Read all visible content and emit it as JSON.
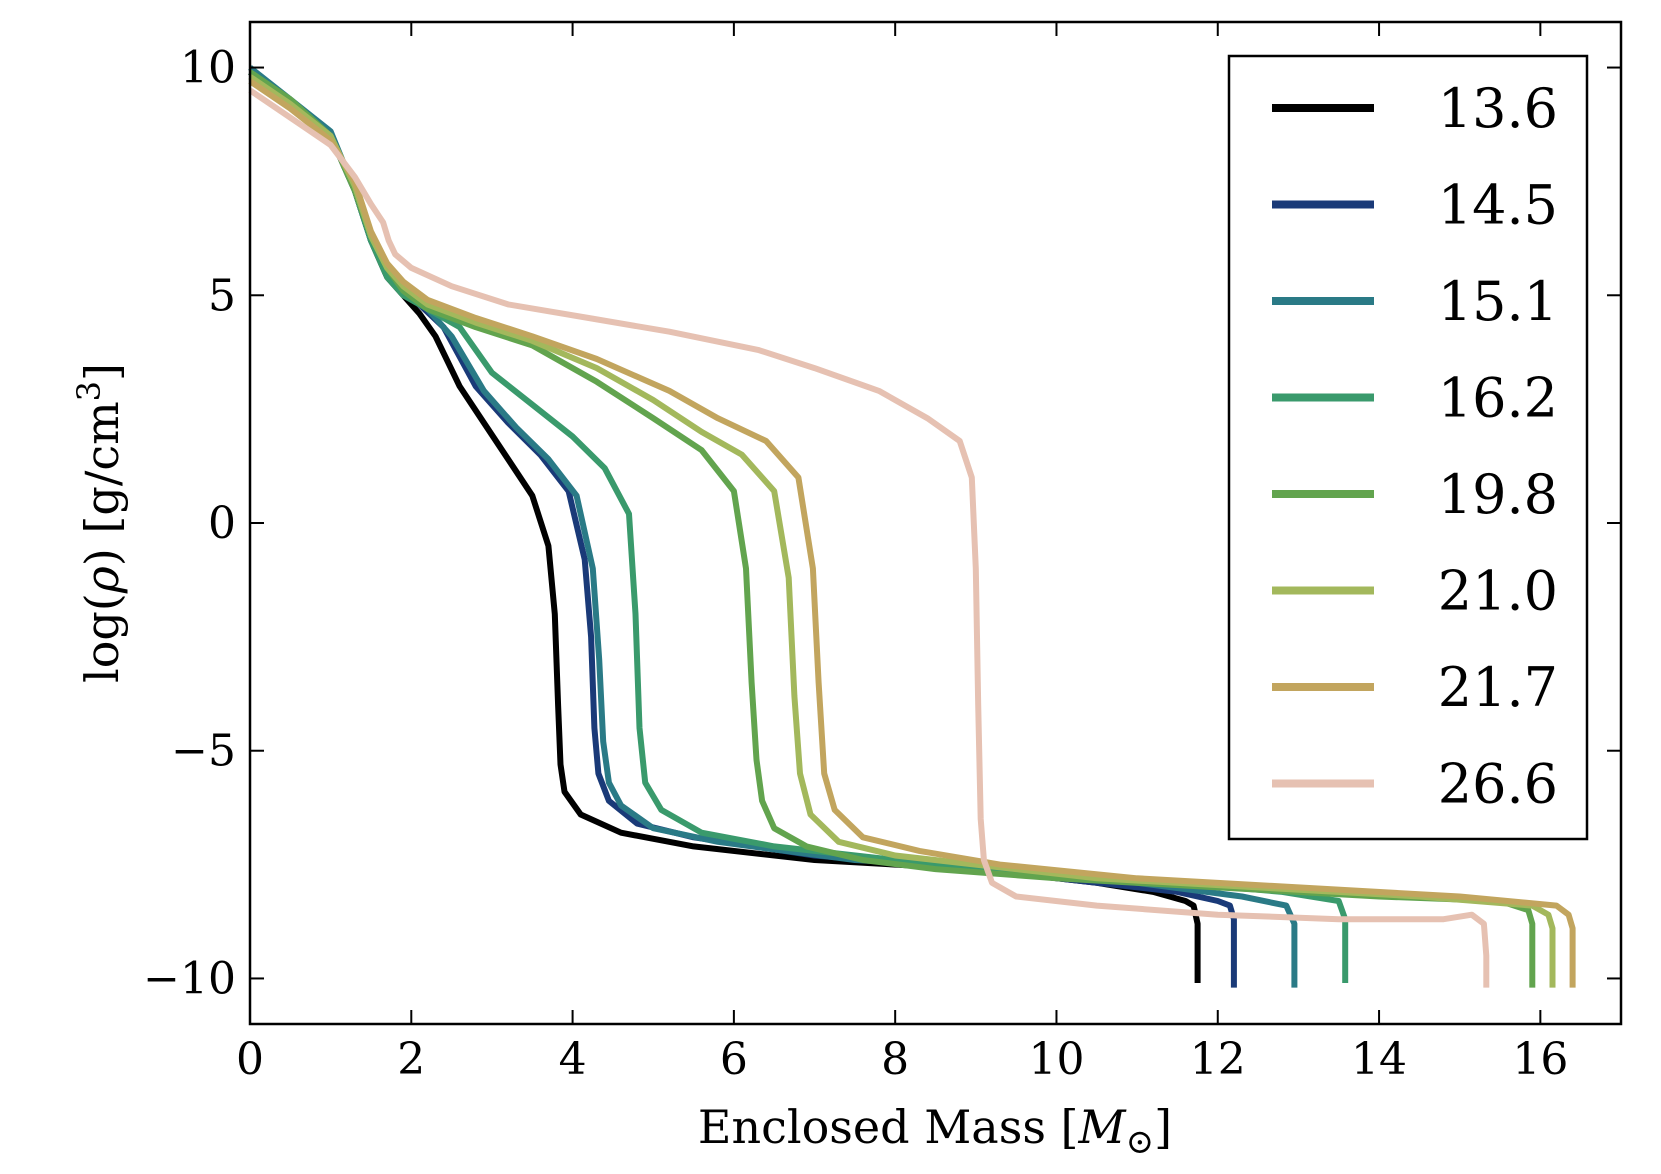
{
  "chart_data": {
    "type": "line",
    "title": "",
    "xlabel": "Enclosed Mass [M⊙]",
    "xlabel_main": "Enclosed Mass [",
    "xlabel_symbol": "M",
    "xlabel_sub": "⊙",
    "xlabel_close": "]",
    "ylabel": "log(ρ) [g/cm³]",
    "ylabel_main": "log(",
    "ylabel_symbol": "ρ",
    "ylabel_mid": ") [g/cm",
    "ylabel_sup": "3",
    "ylabel_close": "]",
    "xlim": [
      0,
      17
    ],
    "ylim": [
      -11,
      11
    ],
    "xticks": [
      0,
      2,
      4,
      6,
      8,
      10,
      12,
      14,
      16
    ],
    "xtick_labels": [
      "0",
      "2",
      "4",
      "6",
      "8",
      "10",
      "12",
      "14",
      "16"
    ],
    "yticks": [
      10,
      5,
      0,
      -5,
      -10
    ],
    "ytick_labels": [
      "10",
      "5",
      "0",
      "−5",
      "−10"
    ],
    "grid": false,
    "legend_position": "top-right",
    "series": [
      {
        "name": "13.6",
        "color": "#000000",
        "x": [
          0,
          0.5,
          1.0,
          1.3,
          1.5,
          1.7,
          1.9,
          2.1,
          2.3,
          2.6,
          2.9,
          3.2,
          3.5,
          3.7,
          3.78,
          3.82,
          3.85,
          3.9,
          4.1,
          4.6,
          5.5,
          7,
          9,
          10.5,
          11.2,
          11.6,
          11.7,
          11.75,
          11.75
        ],
        "y": [
          9.9,
          9.2,
          8.5,
          7.3,
          6.2,
          5.4,
          5.0,
          4.6,
          4.1,
          3.0,
          2.2,
          1.4,
          0.6,
          -0.5,
          -2.0,
          -4.0,
          -5.3,
          -5.9,
          -6.4,
          -6.8,
          -7.1,
          -7.4,
          -7.6,
          -7.9,
          -8.1,
          -8.3,
          -8.4,
          -8.8,
          -10.1
        ]
      },
      {
        "name": "14.5",
        "color": "#1a3a78",
        "x": [
          0,
          0.5,
          1.0,
          1.3,
          1.5,
          1.7,
          1.9,
          2.1,
          2.4,
          2.8,
          3.2,
          3.6,
          3.95,
          4.15,
          4.23,
          4.27,
          4.32,
          4.45,
          4.8,
          5.5,
          7,
          9,
          10.5,
          11.5,
          12.0,
          12.15,
          12.2,
          12.2
        ],
        "y": [
          9.9,
          9.2,
          8.5,
          7.3,
          6.2,
          5.5,
          5.1,
          4.8,
          4.3,
          3.0,
          2.2,
          1.5,
          0.7,
          -0.8,
          -2.5,
          -4.5,
          -5.5,
          -6.1,
          -6.6,
          -6.9,
          -7.3,
          -7.6,
          -7.9,
          -8.1,
          -8.3,
          -8.4,
          -8.7,
          -10.2
        ]
      },
      {
        "name": "15.1",
        "color": "#2a7a86",
        "x": [
          0,
          0.5,
          1.0,
          1.3,
          1.5,
          1.7,
          1.9,
          2.2,
          2.5,
          2.9,
          3.3,
          3.7,
          4.05,
          4.25,
          4.33,
          4.38,
          4.45,
          4.6,
          5.0,
          5.8,
          7.5,
          9.5,
          11,
          12.3,
          12.85,
          12.95,
          12.95
        ],
        "y": [
          10.0,
          9.3,
          8.6,
          7.3,
          6.2,
          5.5,
          5.1,
          4.7,
          4.1,
          2.9,
          2.1,
          1.4,
          0.6,
          -1.0,
          -3.0,
          -4.8,
          -5.7,
          -6.2,
          -6.7,
          -7.0,
          -7.4,
          -7.6,
          -7.9,
          -8.2,
          -8.4,
          -8.8,
          -10.2
        ]
      },
      {
        "name": "16.2",
        "color": "#3a9a6c",
        "x": [
          0,
          0.5,
          1.0,
          1.3,
          1.5,
          1.7,
          1.9,
          2.2,
          2.6,
          3.0,
          3.5,
          4.0,
          4.4,
          4.7,
          4.78,
          4.83,
          4.9,
          5.1,
          5.6,
          6.5,
          8,
          10,
          11.5,
          12.8,
          13.5,
          13.58,
          13.58
        ],
        "y": [
          9.9,
          9.3,
          8.5,
          7.3,
          6.2,
          5.4,
          5.0,
          4.7,
          4.3,
          3.3,
          2.6,
          1.9,
          1.2,
          0.2,
          -2.0,
          -4.5,
          -5.7,
          -6.3,
          -6.8,
          -7.1,
          -7.4,
          -7.7,
          -7.9,
          -8.1,
          -8.3,
          -8.7,
          -10.1
        ]
      },
      {
        "name": "19.8",
        "color": "#62a44e",
        "x": [
          0,
          0.5,
          1.0,
          1.3,
          1.5,
          1.7,
          1.9,
          2.2,
          2.8,
          3.5,
          4.3,
          5.0,
          5.6,
          6.0,
          6.15,
          6.22,
          6.28,
          6.35,
          6.5,
          6.9,
          7.6,
          8.5,
          10,
          12,
          14,
          15.5,
          15.85,
          15.9,
          15.9
        ],
        "y": [
          9.9,
          9.3,
          8.5,
          7.3,
          6.3,
          5.6,
          5.1,
          4.7,
          4.3,
          3.9,
          3.1,
          2.3,
          1.6,
          0.7,
          -1.0,
          -3.5,
          -5.2,
          -6.1,
          -6.7,
          -7.1,
          -7.4,
          -7.6,
          -7.8,
          -8.0,
          -8.2,
          -8.3,
          -8.5,
          -8.8,
          -10.2
        ]
      },
      {
        "name": "21.0",
        "color": "#a3b85c",
        "x": [
          0,
          0.5,
          1.0,
          1.3,
          1.5,
          1.7,
          1.9,
          2.2,
          2.8,
          3.5,
          4.3,
          5.0,
          5.6,
          6.1,
          6.5,
          6.68,
          6.75,
          6.82,
          6.95,
          7.3,
          8.0,
          9.0,
          10.5,
          12.5,
          14.5,
          15.9,
          16.1,
          16.15,
          16.15
        ],
        "y": [
          9.8,
          9.2,
          8.5,
          7.4,
          6.3,
          5.6,
          5.2,
          4.8,
          4.4,
          4.0,
          3.4,
          2.7,
          2.0,
          1.5,
          0.7,
          -1.2,
          -3.8,
          -5.5,
          -6.4,
          -7.0,
          -7.3,
          -7.5,
          -7.8,
          -8.0,
          -8.2,
          -8.4,
          -8.6,
          -8.9,
          -10.2
        ]
      },
      {
        "name": "21.7",
        "color": "#c2a55e",
        "x": [
          0,
          0.5,
          1.0,
          1.3,
          1.5,
          1.7,
          1.9,
          2.2,
          2.8,
          3.5,
          4.3,
          5.2,
          5.8,
          6.4,
          6.8,
          6.98,
          7.05,
          7.12,
          7.25,
          7.6,
          8.3,
          9.3,
          11,
          13,
          15,
          16.2,
          16.35,
          16.4,
          16.4
        ],
        "y": [
          9.7,
          9.1,
          8.4,
          7.5,
          6.4,
          5.7,
          5.3,
          4.9,
          4.5,
          4.1,
          3.6,
          2.9,
          2.3,
          1.8,
          1.0,
          -1.0,
          -3.5,
          -5.5,
          -6.3,
          -6.9,
          -7.2,
          -7.5,
          -7.8,
          -8.0,
          -8.2,
          -8.4,
          -8.6,
          -8.9,
          -10.2
        ]
      },
      {
        "name": "26.6",
        "color": "#e6c1b2",
        "x": [
          0,
          0.5,
          1.0,
          1.3,
          1.5,
          1.65,
          1.72,
          1.8,
          2.0,
          2.5,
          3.2,
          4.2,
          5.2,
          6.3,
          7.0,
          7.8,
          8.4,
          8.8,
          8.95,
          9.0,
          9.03,
          9.06,
          9.1,
          9.2,
          9.5,
          10.5,
          12,
          13.5,
          14.8,
          15.15,
          15.3,
          15.33,
          15.33
        ],
        "y": [
          9.5,
          8.9,
          8.3,
          7.6,
          7.0,
          6.6,
          6.2,
          5.9,
          5.6,
          5.2,
          4.8,
          4.5,
          4.2,
          3.8,
          3.4,
          2.9,
          2.3,
          1.8,
          1.0,
          -1.0,
          -4.0,
          -6.5,
          -7.4,
          -7.9,
          -8.2,
          -8.4,
          -8.6,
          -8.7,
          -8.7,
          -8.6,
          -8.8,
          -9.5,
          -10.2
        ]
      }
    ]
  }
}
